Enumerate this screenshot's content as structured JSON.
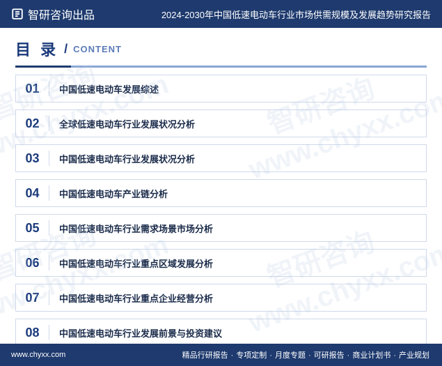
{
  "header": {
    "brand": "智研咨询出品",
    "title": "2024-2030年中国低速电动车行业市场供需规模及发展趋势研究报告"
  },
  "toc": {
    "title_cn": "目 录",
    "slash": "/",
    "title_en": "CONTENT",
    "items": [
      {
        "num": "01",
        "text": "中国低速电动车发展综述"
      },
      {
        "num": "02",
        "text": "全球低速电动车行业发展状况分析"
      },
      {
        "num": "03",
        "text": "中国低速电动车行业发展状况分析"
      },
      {
        "num": "04",
        "text": "中国低速电动车产业链分析"
      },
      {
        "num": "05",
        "text": "中国低速电动车行业需求场景市场分析"
      },
      {
        "num": "06",
        "text": "中国低速电动车行业重点区域发展分析"
      },
      {
        "num": "07",
        "text": "中国低速电动车行业重点企业经营分析"
      },
      {
        "num": "08",
        "text": "中国低速电动车行业发展前景与投资建议"
      }
    ]
  },
  "footer": {
    "url": "www.chyxx.com",
    "links": [
      "精品行研报告",
      "专项定制",
      "月度专题",
      "可研报告",
      "商业计划书",
      "产业规划"
    ],
    "sep": "·"
  },
  "watermark": {
    "text_cn": "智研咨询",
    "text_url": "www.chyxx.com"
  },
  "colors": {
    "primary": "#1e3a6e",
    "accent": "#1a3a7a",
    "light_blue": "#8aa5d4",
    "border": "#cfd9ea",
    "bg": "#ffffff"
  }
}
